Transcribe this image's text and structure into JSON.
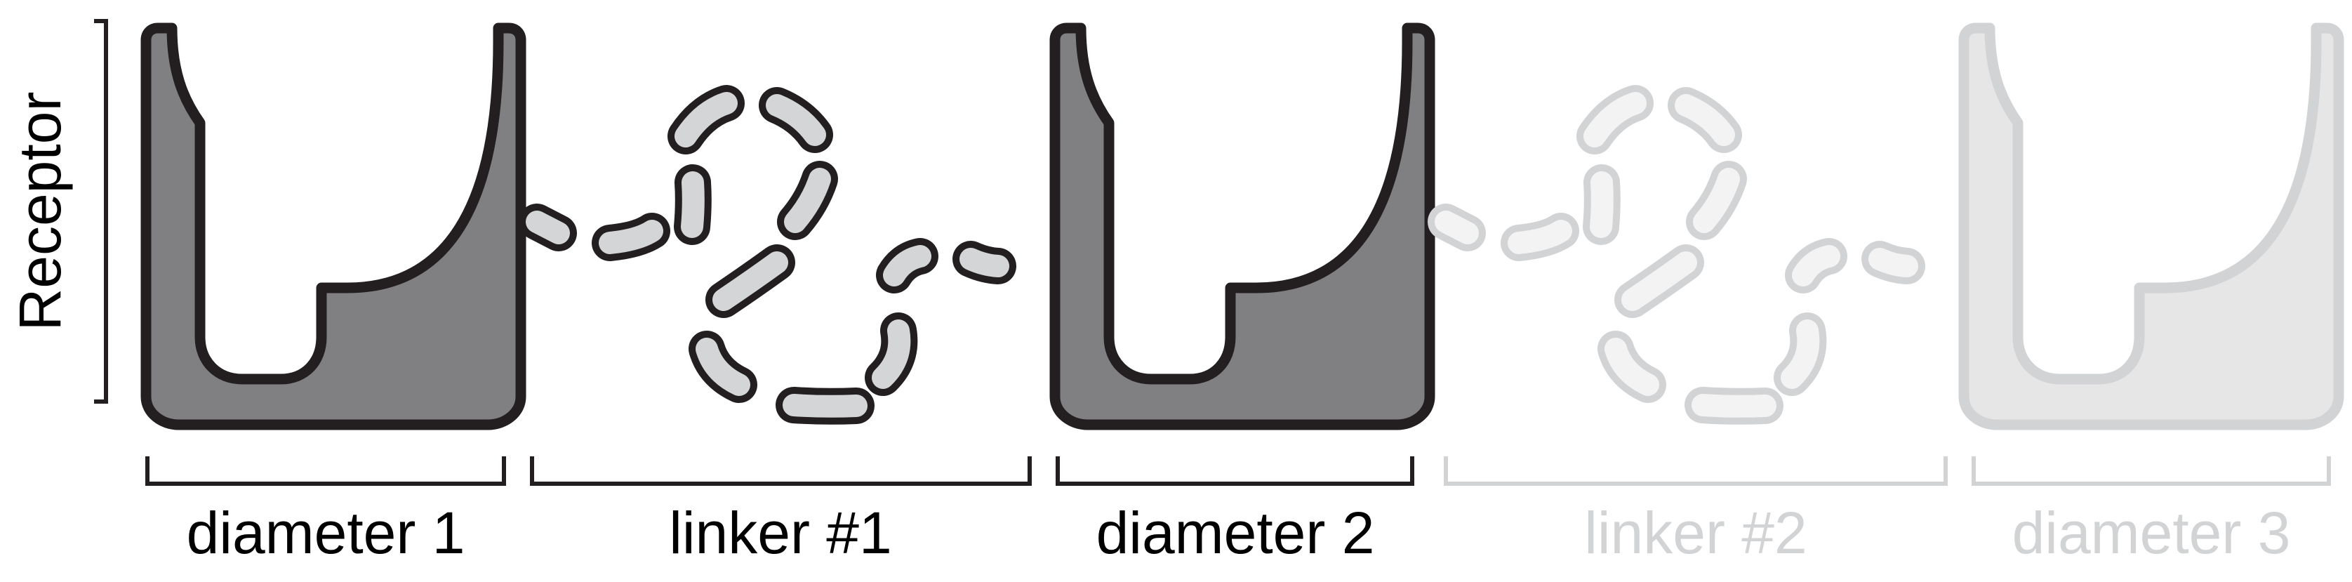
{
  "receptor_label": "Receptor",
  "segments": [
    {
      "label": "diameter 1",
      "kind": "diameter",
      "state": "active"
    },
    {
      "label": "linker #1",
      "kind": "linker",
      "state": "active"
    },
    {
      "label": "diameter 2",
      "kind": "diameter",
      "state": "active"
    },
    {
      "label": "linker #2",
      "kind": "linker",
      "state": "faded"
    },
    {
      "label": "diameter 3",
      "kind": "diameter",
      "state": "faded"
    }
  ],
  "colors": {
    "active_block_fill": "#808083",
    "active_stroke": "#231f20",
    "active_linker_fill": "#d4d5d6",
    "faded_block_fill": "#e6e6e7",
    "faded_stroke": "#d2d3d4",
    "faded_linker_fill": "#f3f3f4",
    "faded_text": "#d2d3d4",
    "text": "#000000"
  }
}
